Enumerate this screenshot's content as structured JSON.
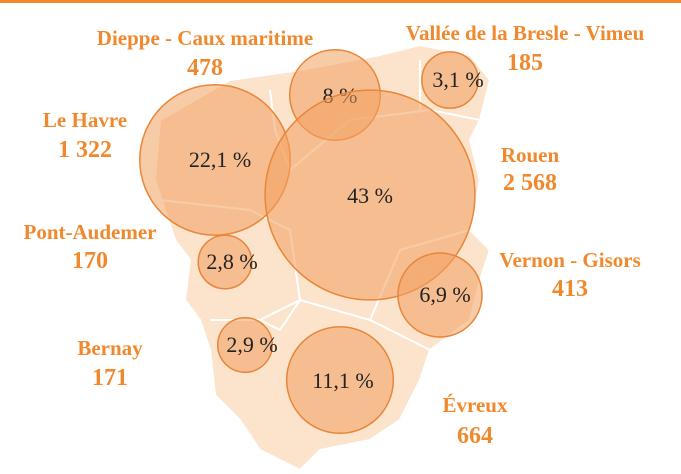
{
  "regions": [
    {
      "name": "Dieppe - Caux maritime",
      "count": 478,
      "share": 8,
      "share_label": "8 %"
    },
    {
      "name": "Vallée de la Bresle - Vimeu",
      "count": 185,
      "share": 3.1,
      "share_label": "3,1 %"
    },
    {
      "name": "Le Havre",
      "count": 1322,
      "count_label": "1 322",
      "share": 22.1,
      "share_label": "22,1 %"
    },
    {
      "name": "Rouen",
      "count": 2568,
      "count_label": "2 568",
      "share": 43,
      "share_label": "43 %"
    },
    {
      "name": "Pont-Audemer",
      "count": 170,
      "share": 2.8,
      "share_label": "2,8 %"
    },
    {
      "name": "Vernon - Gisors",
      "count": 413,
      "share": 6.9,
      "share_label": "6,9 %"
    },
    {
      "name": "Bernay",
      "count": 171,
      "share": 2.9,
      "share_label": "2,9 %"
    },
    {
      "name": "Évreux",
      "count": 664,
      "share": 11.1,
      "share_label": "11,1 %"
    }
  ]
}
